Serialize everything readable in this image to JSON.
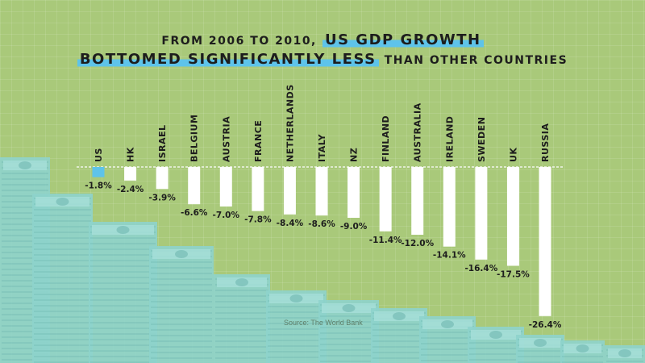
{
  "title": {
    "line1_prefix": "FROM 2006 TO 2010,",
    "line1_highlight": "US GDP GROWTH",
    "line2_highlight": "BOTTOMED SIGNIFICANTLY LESS",
    "line2_suffix": "THAN OTHER COUNTRIES"
  },
  "source": "Source: The World Bank",
  "colors": {
    "background": "#a9c97a",
    "bar": "#ffffff",
    "highlight_bar": "#5ec3ea",
    "title_highlight": "#5ec3ea",
    "money": "#8ed3cc",
    "text": "#1d1d1d"
  },
  "chart_data": {
    "type": "bar",
    "orientation": "vertical-down",
    "categories": [
      "US",
      "HK",
      "ISRAEL",
      "BELGIUM",
      "AUSTRIA",
      "FRANCE",
      "NETHERLANDS",
      "ITALY",
      "NZ",
      "FINLAND",
      "AUSTRALIA",
      "IRELAND",
      "SWEDEN",
      "UK",
      "RUSSIA"
    ],
    "values": [
      -1.8,
      -2.4,
      -3.9,
      -6.6,
      -7.0,
      -7.8,
      -8.4,
      -8.6,
      -9.0,
      -11.4,
      -12.0,
      -14.1,
      -16.4,
      -17.5,
      -26.4
    ],
    "value_labels": [
      "-1.8%",
      "-2.4%",
      "-3.9%",
      "-6.6%",
      "-7.0%",
      "-7.8%",
      "-8.4%",
      "-8.6%",
      "-9.0%",
      "-11.4%",
      "-12.0%",
      "-14.1%",
      "-16.4%",
      "-17.5%",
      "-26.4%"
    ],
    "highlight": "US",
    "baseline": 0,
    "ylim": [
      -26.4,
      0
    ],
    "grid": false,
    "baseline_style": "dashed"
  }
}
